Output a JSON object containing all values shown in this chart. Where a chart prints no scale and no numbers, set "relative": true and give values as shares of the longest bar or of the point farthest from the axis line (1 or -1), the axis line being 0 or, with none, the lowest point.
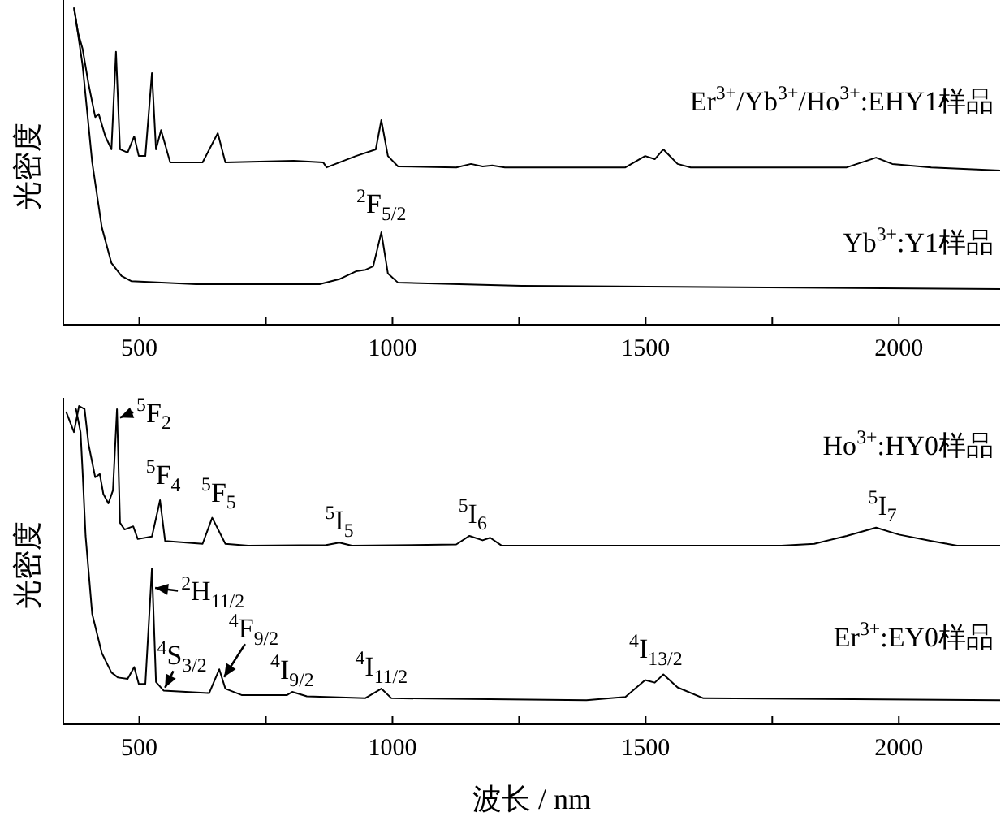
{
  "chart_data": [
    {
      "type": "line",
      "relative": true,
      "ylabel": "光密度",
      "xlim": [
        350,
        2200
      ],
      "xticks": [
        500,
        {
          "value": 750,
          "label": null
        },
        1000,
        {
          "value": 1250,
          "label": null
        },
        1500,
        {
          "value": 1750,
          "label": null
        },
        2000
      ],
      "tick_labels": "x",
      "series": [
        {
          "name": "Er$^{3+}$/Yb$^{3+}$/Ho$^{3+}$:EHY1样品",
          "color": "#000000",
          "x": [
            371,
            379,
            388,
            400,
            413,
            420,
            433,
            445,
            454,
            462,
            477,
            490,
            499,
            512,
            525,
            533,
            543,
            561,
            625,
            655,
            670,
            805,
            863,
            870,
            928,
            967,
            978,
            991,
            1011,
            1126,
            1155,
            1178,
            1197,
            1222,
            1460,
            1499,
            1518,
            1535,
            1563,
            1589,
            1897,
            1955,
            1987,
            2064,
            2200
          ],
          "values": [
            1.0,
            0.923,
            0.872,
            0.759,
            0.656,
            0.665,
            0.595,
            0.554,
            0.862,
            0.554,
            0.544,
            0.595,
            0.533,
            0.533,
            0.795,
            0.554,
            0.615,
            0.513,
            0.513,
            0.605,
            0.513,
            0.518,
            0.513,
            0.497,
            0.533,
            0.554,
            0.646,
            0.533,
            0.5,
            0.497,
            0.508,
            0.5,
            0.503,
            0.497,
            0.497,
            0.533,
            0.523,
            0.554,
            0.508,
            0.497,
            0.497,
            0.528,
            0.508,
            0.497,
            0.487
          ]
        },
        {
          "name": "Yb$^{3+}$:Y1样品",
          "color": "#000000",
          "x": [
            372,
            388,
            407,
            426,
            445,
            465,
            484,
            612,
            856,
            895,
            928,
            947,
            962,
            978,
            991,
            1011,
            1255,
            2200
          ],
          "values": [
            0.995,
            0.82,
            0.513,
            0.308,
            0.195,
            0.154,
            0.138,
            0.128,
            0.128,
            0.144,
            0.169,
            0.174,
            0.185,
            0.292,
            0.162,
            0.133,
            0.123,
            0.113
          ]
        }
      ],
      "annotations": [
        {
          "text": "$^{2}$F$_{5/2}$",
          "x": 978,
          "y": 0.292
        }
      ]
    },
    {
      "type": "line",
      "relative": true,
      "ylabel": "光密度",
      "xlabel": "波长 / nm",
      "xlim": [
        350,
        2200
      ],
      "xticks": [
        500,
        {
          "value": 750,
          "label": null
        },
        1000,
        {
          "value": 1250,
          "label": null
        },
        1500,
        {
          "value": 1750,
          "label": null
        },
        2000
      ],
      "tick_labels": "x",
      "series": [
        {
          "name": "Ho$^{3+}$:HY0样品",
          "color": "#000000",
          "x": [
            356,
            371,
            381,
            392,
            400,
            413,
            422,
            429,
            439,
            448,
            456,
            462,
            471,
            488,
            497,
            525,
            541,
            551,
            625,
            644,
            670,
            715,
            869,
            895,
            920,
            1126,
            1152,
            1178,
            1193,
            1216,
            1768,
            1833,
            1897,
            1955,
            2000,
            2064,
            2115,
            2200
          ],
          "values": [
            0.98,
            0.918,
            1.0,
            0.99,
            0.878,
            0.776,
            0.786,
            0.724,
            0.694,
            0.735,
            0.99,
            0.633,
            0.612,
            0.622,
            0.582,
            0.59,
            0.704,
            0.576,
            0.567,
            0.649,
            0.567,
            0.561,
            0.563,
            0.571,
            0.561,
            0.565,
            0.592,
            0.578,
            0.586,
            0.561,
            0.561,
            0.567,
            0.592,
            0.618,
            0.596,
            0.576,
            0.561,
            0.561
          ]
        },
        {
          "name": "Er$^{3+}$:EY0样品",
          "color": "#000000",
          "x": [
            375,
            384,
            388,
            394,
            407,
            426,
            445,
            458,
            477,
            490,
            499,
            512,
            525,
            533,
            548,
            638,
            658,
            670,
            702,
            792,
            802,
            831,
            946,
            978,
            998,
            1383,
            1460,
            1499,
            1518,
            1535,
            1563,
            1614,
            2200
          ],
          "values": [
            0.99,
            0.918,
            0.796,
            0.592,
            0.347,
            0.224,
            0.163,
            0.147,
            0.143,
            0.18,
            0.127,
            0.127,
            0.49,
            0.133,
            0.106,
            0.098,
            0.173,
            0.112,
            0.092,
            0.092,
            0.102,
            0.088,
            0.082,
            0.112,
            0.082,
            0.076,
            0.086,
            0.139,
            0.131,
            0.157,
            0.116,
            0.082,
            0.076
          ]
        }
      ],
      "annotations": [
        {
          "text": "$^{5}$F$_{2}$",
          "x": 456,
          "y": 0.96
        },
        {
          "text": "$^{5}$F$_{4}$",
          "x": 541,
          "y": 0.704
        },
        {
          "text": "$^{5}$F$_{5}$",
          "x": 644,
          "y": 0.649
        },
        {
          "text": "$^{5}$I$_{5}$",
          "x": 895,
          "y": 0.571
        },
        {
          "text": "$^{5}$I$_{6}$",
          "x": 1152,
          "y": 0.592
        },
        {
          "text": "$^{5}$I$_{7}$",
          "x": 1955,
          "y": 0.618
        },
        {
          "text": "$^{2}$H$_{11/2}$",
          "x": 525,
          "y": 0.43
        },
        {
          "text": "$^{4}$S$_{3/2}$",
          "x": 548,
          "y": 0.106
        },
        {
          "text": "$^{4}$F$_{9/2}$",
          "x": 664,
          "y": 0.14
        },
        {
          "text": "$^{4}$I$_{9/2}$",
          "x": 802,
          "y": 0.102
        },
        {
          "text": "$^{4}$I$_{11/2}$",
          "x": 978,
          "y": 0.112
        },
        {
          "text": "$^{4}$I$_{13/2}$",
          "x": 1520,
          "y": 0.157
        }
      ]
    }
  ]
}
